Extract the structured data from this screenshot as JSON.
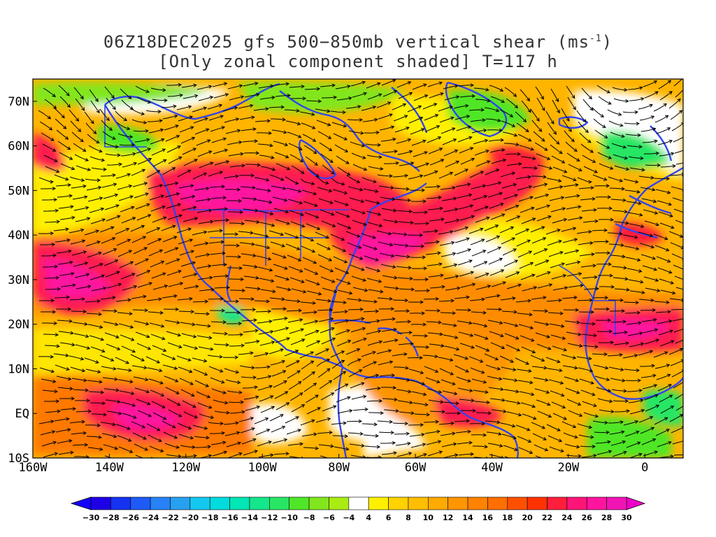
{
  "title": {
    "line1_prefix": "06Z18DEC2025 gfs 500−850mb vertical shear (ms",
    "line1_sup": "-1",
    "line1_suffix": ")",
    "line2": "[Only zonal component shaded] T=117 h"
  },
  "map": {
    "lon_range": [
      -160,
      10
    ],
    "lat_range": [
      -10,
      75
    ],
    "lon_ticks": [
      "160W",
      "140W",
      "120W",
      "100W",
      "80W",
      "60W",
      "40W",
      "20W",
      "0"
    ],
    "lat_ticks": [
      "10S",
      "EQ",
      "10N",
      "20N",
      "30N",
      "40N",
      "50N",
      "60N",
      "70N"
    ],
    "coastline_color": "#3344ee",
    "streamline_color": "#000000"
  },
  "colorbar": {
    "labels": [
      "-30",
      "-28",
      "-26",
      "-24",
      "-22",
      "-20",
      "-18",
      "-16",
      "-14",
      "-12",
      "-10",
      "-8",
      "-6",
      "-4",
      "4",
      "6",
      "8",
      "10",
      "12",
      "14",
      "16",
      "18",
      "20",
      "22",
      "24",
      "26",
      "28",
      "30"
    ],
    "colors": [
      "#1e00e6",
      "#1432f0",
      "#1e5af5",
      "#2882f5",
      "#28a0f0",
      "#14c8f0",
      "#00dcdc",
      "#00e6b4",
      "#14e68c",
      "#28e664",
      "#50e628",
      "#82e61e",
      "#aaeb14",
      "#ffffff",
      "#fff000",
      "#ffd200",
      "#ffbe00",
      "#ffaa00",
      "#ff9600",
      "#ff8200",
      "#ff6e00",
      "#ff5000",
      "#ff3200",
      "#ff1e3c",
      "#ff1478",
      "#ff14a0",
      "#f014b4"
    ],
    "low_color": "#1400ff",
    "high_color": "#f000c8"
  }
}
